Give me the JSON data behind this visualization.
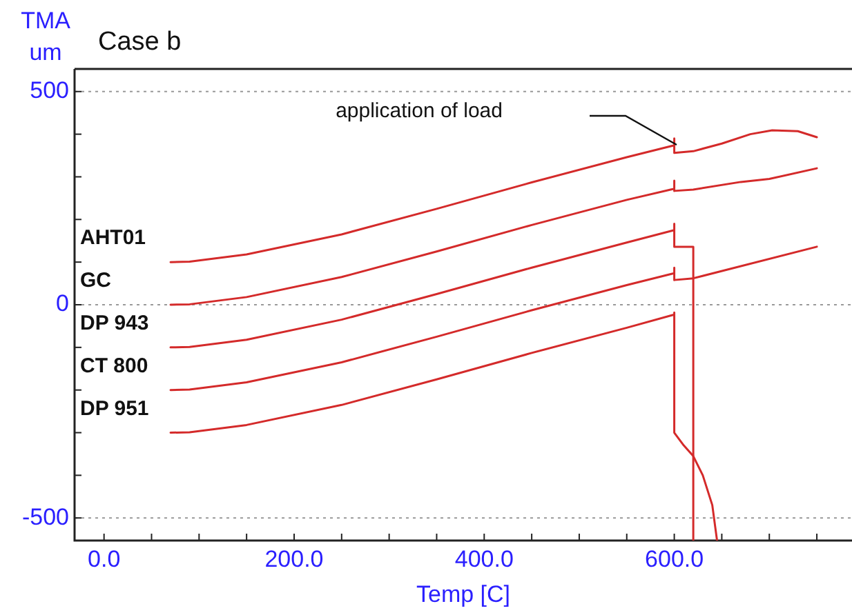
{
  "chart_data": {
    "type": "line",
    "title": "Case b",
    "xlabel": "Temp [C]",
    "ylabel": "TMA um",
    "xlim": [
      -31,
      787
    ],
    "ylim": [
      -553,
      553
    ],
    "xticks": [
      {
        "value": 0,
        "label": "0.0"
      },
      {
        "value": 50,
        "label": null
      },
      {
        "value": 100,
        "label": null
      },
      {
        "value": 150,
        "label": null
      },
      {
        "value": 200,
        "label": "200.0"
      },
      {
        "value": 250,
        "label": null
      },
      {
        "value": 300,
        "label": null
      },
      {
        "value": 350,
        "label": null
      },
      {
        "value": 400,
        "label": "400.0"
      },
      {
        "value": 450,
        "label": null
      },
      {
        "value": 500,
        "label": null
      },
      {
        "value": 550,
        "label": null
      },
      {
        "value": 600,
        "label": "600.0"
      },
      {
        "value": 650,
        "label": null
      },
      {
        "value": 700,
        "label": null
      },
      {
        "value": 750,
        "label": null
      }
    ],
    "yticks": [
      -500,
      {
        "value": -400,
        "label": null
      },
      {
        "value": -300,
        "label": null
      },
      {
        "value": -200,
        "label": null
      },
      {
        "value": -100,
        "label": null
      },
      0,
      {
        "value": 100,
        "label": null
      },
      {
        "value": 200,
        "label": null
      },
      {
        "value": 300,
        "label": null
      },
      {
        "value": 400,
        "label": null
      },
      500
    ],
    "grid": "y",
    "legend": false,
    "marker": "none",
    "line_style": "solid",
    "annotations": [
      "application of load"
    ],
    "series": [
      {
        "name": "AHT01",
        "color": "#d42a2a",
        "x": [
          70,
          90,
          150,
          250,
          350,
          450,
          550,
          600,
          600,
          600,
          620,
          650,
          680,
          703,
          730,
          750
        ],
        "values": [
          100,
          101,
          118,
          165,
          225,
          287,
          346,
          374,
          390,
          356,
          360,
          378,
          400,
          409,
          407,
          393
        ]
      },
      {
        "name": "GC",
        "color": "#d42a2a",
        "x": [
          70,
          90,
          150,
          250,
          350,
          450,
          550,
          600,
          600,
          600,
          620,
          670,
          700,
          750
        ],
        "values": [
          0,
          1,
          18,
          65,
          125,
          187,
          246,
          272,
          291,
          267,
          270,
          288,
          295,
          320
        ]
      },
      {
        "name": "DP 943",
        "color": "#d42a2a",
        "x": [
          70,
          90,
          150,
          250,
          350,
          450,
          550,
          600,
          600,
          600,
          620,
          620
        ],
        "values": [
          -100,
          -99,
          -82,
          -35,
          25,
          87,
          146,
          175,
          190,
          136,
          136,
          -553
        ]
      },
      {
        "name": "CT 800",
        "color": "#d42a2a",
        "x": [
          70,
          90,
          150,
          250,
          350,
          450,
          550,
          600,
          600,
          600,
          620,
          750
        ],
        "values": [
          -200,
          -199,
          -182,
          -135,
          -75,
          -13,
          46,
          74,
          87,
          58,
          62,
          136
        ]
      },
      {
        "name": "DP 951",
        "color": "#d42a2a",
        "x": [
          70,
          90,
          150,
          250,
          350,
          450,
          550,
          600,
          600,
          600,
          610,
          620,
          630,
          640,
          645
        ],
        "values": [
          -300,
          -299,
          -282,
          -235,
          -175,
          -113,
          -54,
          -23,
          -18,
          -300,
          -330,
          -355,
          -400,
          -470,
          -553
        ]
      }
    ]
  }
}
